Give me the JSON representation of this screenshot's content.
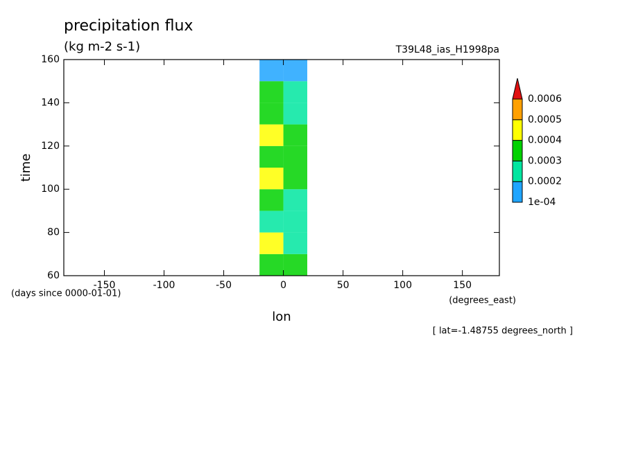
{
  "chart_data": {
    "type": "contour",
    "title": "precipitation flux",
    "units": "(kg m-2 s-1)",
    "subtitle": "T39L48_ias_H1998pa",
    "x_label": "lon",
    "y_label": "time",
    "y_units": "(days since 0000-01-01)",
    "x_units": "(degrees_east)",
    "annotation": "[ lat=-1.48755 degrees_north ]",
    "xlim": [
      -184,
      181
    ],
    "ylim": [
      60,
      160
    ],
    "xticks": [
      -150,
      -100,
      -50,
      0,
      50,
      100,
      150
    ],
    "yticks": [
      60,
      80,
      100,
      120,
      140,
      160
    ],
    "x": [
      -170,
      -150,
      -130,
      -110,
      -90,
      -70,
      -50,
      -30,
      -10,
      10,
      30,
      50,
      70,
      90,
      110,
      130,
      150,
      170
    ],
    "y": [
      65,
      75,
      85,
      95,
      105,
      115,
      125,
      135,
      145,
      155
    ],
    "values": [
      [
        0,
        0,
        0,
        0,
        0,
        0,
        0,
        0,
        0.00034,
        0.00032,
        0,
        0,
        0,
        0,
        0,
        0,
        0,
        0
      ],
      [
        0,
        0,
        0,
        0,
        0,
        0,
        0,
        0,
        0.00041,
        0.00028,
        0,
        0,
        0,
        0,
        0,
        0,
        0,
        0
      ],
      [
        0,
        0,
        0,
        0,
        0,
        0,
        0,
        0,
        0.00026,
        0.00022,
        0,
        0,
        0,
        0,
        0,
        0,
        0,
        0
      ],
      [
        0,
        0,
        0,
        0,
        0,
        0,
        0,
        0,
        0.00031,
        0.00024,
        0,
        0,
        0,
        0,
        0,
        0,
        0,
        0
      ],
      [
        0,
        0,
        0,
        0,
        0,
        0,
        0,
        0,
        0.00044,
        0.00036,
        0,
        0,
        0,
        0,
        0,
        0,
        0,
        0
      ],
      [
        0,
        0,
        0,
        0,
        0,
        0,
        0,
        0,
        0.00038,
        0.00033,
        0,
        0,
        0,
        0,
        0,
        0,
        0,
        0
      ],
      [
        0,
        0,
        0,
        0,
        0,
        0,
        0,
        0,
        0.00048,
        0.00035,
        0,
        0,
        0,
        0,
        0,
        0,
        0,
        0
      ],
      [
        0,
        0,
        0,
        0,
        0,
        0,
        0,
        0,
        0.00032,
        0.00029,
        0,
        0,
        0,
        0,
        0,
        0,
        0,
        0
      ],
      [
        0,
        0,
        0,
        0,
        0,
        0,
        0,
        0,
        0.00036,
        0.00025,
        0,
        0,
        0,
        0,
        0,
        0,
        0,
        0
      ],
      [
        0,
        0,
        0,
        0,
        0,
        0,
        0,
        0,
        0.00018,
        0.00015,
        0,
        0,
        0,
        0,
        0,
        0,
        0,
        0
      ]
    ],
    "levels": [
      {
        "value": 0.0001,
        "label": "1e-04"
      },
      0.0002,
      0.0003,
      0.0004,
      0.0005,
      0.0006
    ],
    "colors": [
      "#1fa5ff",
      "#00e6a0",
      "#00d200",
      "#ffff00",
      "#ffa000",
      "#e01010"
    ]
  }
}
